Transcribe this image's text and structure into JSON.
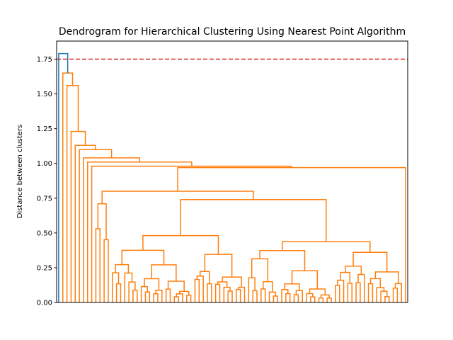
{
  "chart_data": {
    "type": "dendrogram",
    "title": "Dendrogram for Hierarchical Clustering Using Nearest Point Algorithm",
    "xlabel": "",
    "ylabel": "Distance between clusters",
    "ylim": [
      0,
      1.88
    ],
    "yticks": [
      0.0,
      0.25,
      0.5,
      0.75,
      1.0,
      1.25,
      1.5,
      1.75
    ],
    "ytick_labels": [
      "0.00",
      "0.25",
      "0.50",
      "0.75",
      "1.00",
      "1.25",
      "1.50",
      "1.75"
    ],
    "leaf_count": 84,
    "leaf_labels_shown": false,
    "grid": false,
    "threshold_line": {
      "value": 1.75,
      "color": "#d62728",
      "style": "dashed"
    },
    "colors": {
      "above_threshold": "#1f77b4",
      "cluster": "#ff7f0e"
    },
    "merge_heights_above_threshold": [
      1.79,
      1.65,
      1.56
    ],
    "merge_heights_main_cluster_top": [
      1.23,
      1.13,
      1.1,
      1.04,
      1.01,
      0.98,
      0.97,
      0.8,
      0.74,
      0.69
    ],
    "merge_heights_main_cluster_low": [
      0.68,
      0.65,
      0.64,
      0.63,
      0.62,
      0.6,
      0.59,
      0.58,
      0.55,
      0.52,
      0.5,
      0.49,
      0.47,
      0.46,
      0.45,
      0.43,
      0.42,
      0.41,
      0.4,
      0.36,
      0.33,
      0.32,
      0.31,
      0.29,
      0.27,
      0.26,
      0.23,
      0.22,
      0.2,
      0.18,
      0.17,
      0.11,
      0.09,
      0.08
    ]
  }
}
